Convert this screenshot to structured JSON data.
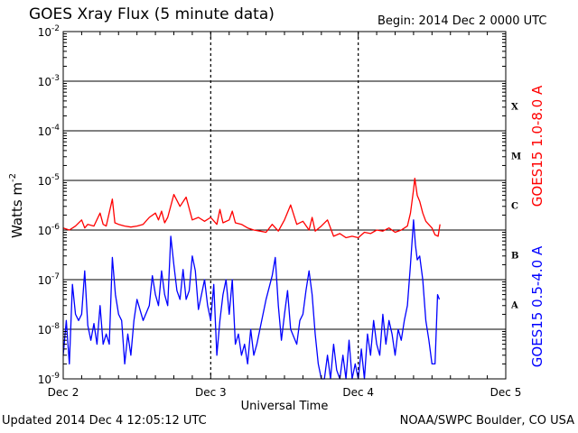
{
  "header": {
    "title": "GOES Xray Flux (5 minute data)",
    "begin": "Begin:  2014 Dec 2 0000 UTC"
  },
  "footer": {
    "updated": "Updated 2014 Dec  4 12:05:12 UTC",
    "credit": "NOAA/SWPC Boulder, CO USA"
  },
  "chart_data": {
    "type": "line",
    "xlabel": "Universal Time",
    "ylabel": "Watts m",
    "ylabel_sup": "-2",
    "yscale": "log",
    "ylim": [
      1e-09,
      0.01
    ],
    "xlim": [
      0,
      72
    ],
    "x_unit_note": "hours after 2014 Dec 2 0000 UTC",
    "x_ticks": [
      {
        "value": 0,
        "label": "Dec 2"
      },
      {
        "value": 24,
        "label": "Dec 3"
      },
      {
        "value": 48,
        "label": "Dec 4"
      },
      {
        "value": 72,
        "label": "Dec 5"
      }
    ],
    "y_ticks": [
      {
        "exp": -9,
        "label": "10",
        "sup": "-9"
      },
      {
        "exp": -8,
        "label": "10",
        "sup": "-8"
      },
      {
        "exp": -7,
        "label": "10",
        "sup": "-7"
      },
      {
        "exp": -6,
        "label": "10",
        "sup": "-6"
      },
      {
        "exp": -5,
        "label": "10",
        "sup": "-5"
      },
      {
        "exp": -4,
        "label": "10",
        "sup": "-4"
      },
      {
        "exp": -3,
        "label": "10",
        "sup": "-3"
      },
      {
        "exp": -2,
        "label": "10",
        "sup": "-2"
      }
    ],
    "flare_classes": [
      {
        "label": "A",
        "exp": -7.5
      },
      {
        "label": "B",
        "exp": -6.5
      },
      {
        "label": "C",
        "exp": -5.5
      },
      {
        "label": "M",
        "exp": -4.5
      },
      {
        "label": "X",
        "exp": -3.5
      }
    ],
    "grid": true,
    "series": [
      {
        "name": "GOES15 1.0-8.0 A",
        "color": "#ff0000",
        "points": [
          [
            0,
            1.1e-06
          ],
          [
            1,
            1e-06
          ],
          [
            2,
            1.2e-06
          ],
          [
            3,
            1.6e-06
          ],
          [
            3.5,
            1.1e-06
          ],
          [
            4,
            1.3e-06
          ],
          [
            5,
            1.2e-06
          ],
          [
            6,
            2.2e-06
          ],
          [
            6.5,
            1.3e-06
          ],
          [
            7,
            1.2e-06
          ],
          [
            8,
            4.2e-06
          ],
          [
            8.4,
            1.4e-06
          ],
          [
            9,
            1.3e-06
          ],
          [
            10,
            1.2e-06
          ],
          [
            11,
            1.15e-06
          ],
          [
            12,
            1.2e-06
          ],
          [
            13,
            1.3e-06
          ],
          [
            14,
            1.8e-06
          ],
          [
            15,
            2.2e-06
          ],
          [
            15.5,
            1.6e-06
          ],
          [
            16,
            2.4e-06
          ],
          [
            16.5,
            1.4e-06
          ],
          [
            17,
            1.8e-06
          ],
          [
            18,
            5.2e-06
          ],
          [
            19,
            3e-06
          ],
          [
            20,
            4.6e-06
          ],
          [
            21,
            1.6e-06
          ],
          [
            22,
            1.8e-06
          ],
          [
            23,
            1.5e-06
          ],
          [
            24,
            1.8e-06
          ],
          [
            25,
            1.3e-06
          ],
          [
            25.5,
            2.6e-06
          ],
          [
            26,
            1.4e-06
          ],
          [
            27,
            1.6e-06
          ],
          [
            27.5,
            2.4e-06
          ],
          [
            28,
            1.4e-06
          ],
          [
            29,
            1.3e-06
          ],
          [
            30,
            1.1e-06
          ],
          [
            31,
            1e-06
          ],
          [
            32,
            9.5e-07
          ],
          [
            33,
            9e-07
          ],
          [
            34,
            1.3e-06
          ],
          [
            35,
            9.5e-07
          ],
          [
            36,
            1.6e-06
          ],
          [
            37,
            3.2e-06
          ],
          [
            38,
            1.3e-06
          ],
          [
            39,
            1.5e-06
          ],
          [
            40,
            1e-06
          ],
          [
            40.5,
            1.8e-06
          ],
          [
            41,
            9.5e-07
          ],
          [
            42,
            1.2e-06
          ],
          [
            43,
            1.6e-06
          ],
          [
            44,
            7.5e-07
          ],
          [
            45,
            8.5e-07
          ],
          [
            46,
            7e-07
          ],
          [
            47,
            7.5e-07
          ],
          [
            48,
            7e-07
          ],
          [
            49,
            9e-07
          ],
          [
            50,
            8.5e-07
          ],
          [
            51,
            1e-06
          ],
          [
            52,
            9.5e-07
          ],
          [
            53,
            1.1e-06
          ],
          [
            54,
            9e-07
          ],
          [
            55,
            1e-06
          ],
          [
            56,
            1.2e-06
          ],
          [
            56.5,
            2.2e-06
          ],
          [
            57,
            6.5e-06
          ],
          [
            57.2,
            1.1e-05
          ],
          [
            57.6,
            5e-06
          ],
          [
            58,
            3.8e-06
          ],
          [
            58.5,
            2.2e-06
          ],
          [
            59,
            1.5e-06
          ],
          [
            60,
            1.1e-06
          ],
          [
            60.5,
            8e-07
          ],
          [
            61,
            7.5e-07
          ],
          [
            61.3,
            1.3e-06
          ]
        ]
      },
      {
        "name": "GOES15 0.5-4.0 A",
        "color": "#0000ff",
        "points": [
          [
            0,
            3e-09
          ],
          [
            0.5,
            1.5e-08
          ],
          [
            1,
            2e-09
          ],
          [
            1.5,
            8e-08
          ],
          [
            2,
            2e-08
          ],
          [
            2.5,
            1.5e-08
          ],
          [
            3,
            2e-08
          ],
          [
            3.5,
            1.5e-07
          ],
          [
            4,
            1.2e-08
          ],
          [
            4.5,
            6e-09
          ],
          [
            5,
            1.3e-08
          ],
          [
            5.5,
            5e-09
          ],
          [
            6,
            3e-08
          ],
          [
            6.5,
            5e-09
          ],
          [
            7,
            8e-09
          ],
          [
            7.5,
            5e-09
          ],
          [
            8,
            2.8e-07
          ],
          [
            8.5,
            5e-08
          ],
          [
            9,
            2e-08
          ],
          [
            9.5,
            1.5e-08
          ],
          [
            10,
            2e-09
          ],
          [
            10.5,
            8e-09
          ],
          [
            11,
            3e-09
          ],
          [
            11.5,
            1.5e-08
          ],
          [
            12,
            4e-08
          ],
          [
            13,
            1.5e-08
          ],
          [
            14,
            3e-08
          ],
          [
            14.5,
            1.2e-07
          ],
          [
            15,
            5e-08
          ],
          [
            15.5,
            3e-08
          ],
          [
            16,
            1.5e-07
          ],
          [
            16.5,
            5e-08
          ],
          [
            17,
            3e-08
          ],
          [
            17.5,
            7.5e-07
          ],
          [
            18,
            2e-07
          ],
          [
            18.5,
            6e-08
          ],
          [
            19,
            4e-08
          ],
          [
            19.5,
            1.6e-07
          ],
          [
            20,
            4e-08
          ],
          [
            20.5,
            6e-08
          ],
          [
            21,
            3e-07
          ],
          [
            21.5,
            1.5e-07
          ],
          [
            22,
            2.5e-08
          ],
          [
            22.5,
            5e-08
          ],
          [
            23,
            1e-07
          ],
          [
            23.5,
            3e-08
          ],
          [
            24,
            1.5e-08
          ],
          [
            24.5,
            8e-08
          ],
          [
            25,
            3e-09
          ],
          [
            25.5,
            1.5e-08
          ],
          [
            26,
            5e-08
          ],
          [
            26.5,
            1e-07
          ],
          [
            27,
            2e-08
          ],
          [
            27.5,
            1e-07
          ],
          [
            28,
            5e-09
          ],
          [
            28.5,
            8e-09
          ],
          [
            29,
            3e-09
          ],
          [
            29.5,
            5e-09
          ],
          [
            30,
            2e-09
          ],
          [
            30.5,
            1e-08
          ],
          [
            31,
            3e-09
          ],
          [
            31.5,
            5e-09
          ],
          [
            32,
            1e-08
          ],
          [
            33,
            4e-08
          ],
          [
            34,
            1.2e-07
          ],
          [
            34.5,
            2.8e-07
          ],
          [
            35,
            3e-08
          ],
          [
            35.5,
            6e-09
          ],
          [
            36,
            2e-08
          ],
          [
            36.5,
            6e-08
          ],
          [
            37,
            1e-08
          ],
          [
            38,
            5e-09
          ],
          [
            38.5,
            1.5e-08
          ],
          [
            39,
            2e-08
          ],
          [
            39.5,
            6e-08
          ],
          [
            40,
            1.5e-07
          ],
          [
            40.5,
            5e-08
          ],
          [
            41,
            8e-09
          ],
          [
            41.5,
            2e-09
          ],
          [
            42,
            1e-09
          ],
          [
            42.5,
            1e-09
          ],
          [
            43,
            3e-09
          ],
          [
            43.5,
            1e-09
          ],
          [
            44,
            5e-09
          ],
          [
            44.5,
            1.5e-09
          ],
          [
            45,
            1e-09
          ],
          [
            45.5,
            3e-09
          ],
          [
            46,
            1e-09
          ],
          [
            46.5,
            6e-09
          ],
          [
            47,
            1e-09
          ],
          [
            47.5,
            2e-09
          ],
          [
            48,
            1e-09
          ],
          [
            48.5,
            4e-09
          ],
          [
            49,
            1e-09
          ],
          [
            49.5,
            8e-09
          ],
          [
            50,
            3e-09
          ],
          [
            50.5,
            1.5e-08
          ],
          [
            51,
            5e-09
          ],
          [
            51.5,
            3e-09
          ],
          [
            52,
            2e-08
          ],
          [
            52.5,
            5e-09
          ],
          [
            53,
            1.5e-08
          ],
          [
            53.5,
            8e-09
          ],
          [
            54,
            3e-09
          ],
          [
            54.5,
            1e-08
          ],
          [
            55,
            6e-09
          ],
          [
            55.5,
            1.5e-08
          ],
          [
            56,
            3e-08
          ],
          [
            56.5,
            2e-07
          ],
          [
            57,
            1.6e-06
          ],
          [
            57.3,
            5e-07
          ],
          [
            57.6,
            2.5e-07
          ],
          [
            58,
            3e-07
          ],
          [
            58.5,
            1e-07
          ],
          [
            59,
            1.5e-08
          ],
          [
            59.5,
            6e-09
          ],
          [
            60,
            2e-09
          ],
          [
            60.5,
            2e-09
          ],
          [
            60.9,
            5e-08
          ],
          [
            61.2,
            4e-08
          ]
        ]
      }
    ]
  }
}
